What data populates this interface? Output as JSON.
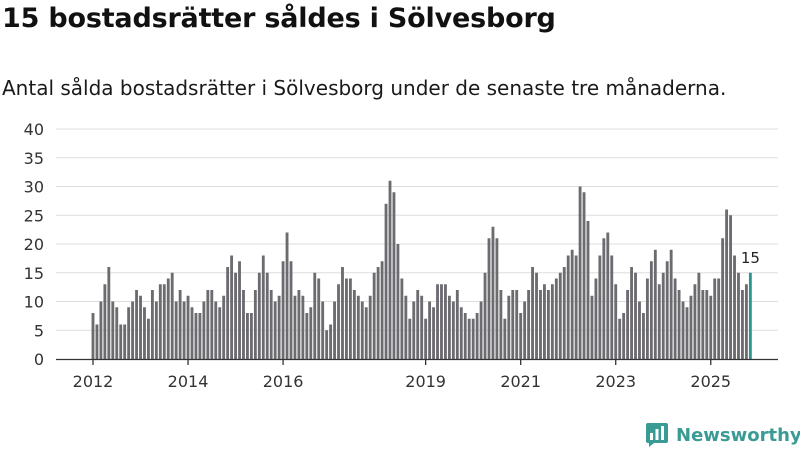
{
  "title": "15 bostadsrätter såldes i Sölvesborg",
  "subtitle": "Antal sålda bostadsrätter i Sölvesborg under de senaste tre månaderna.",
  "brand": {
    "name": "Newsworthy",
    "color": "#3a9a94"
  },
  "colors": {
    "bar": "#6c6b70",
    "highlight": "#2a968e",
    "grid": "#dddddd",
    "axis": "#333333"
  },
  "chart_data": {
    "type": "bar",
    "title": "15 bostadsrätter såldes i Sölvesborg",
    "xlabel": "",
    "ylabel": "",
    "ylim": [
      0,
      40
    ],
    "yticks": [
      "0",
      "5",
      "10",
      "15",
      "20",
      "25",
      "30",
      "35",
      "40"
    ],
    "start": "2012-01",
    "xticks": [
      {
        "label": "2012",
        "index": 0
      },
      {
        "label": "2014",
        "index": 24
      },
      {
        "label": "2016",
        "index": 48
      },
      {
        "label": "2019",
        "index": 84
      },
      {
        "label": "2021",
        "index": 108
      },
      {
        "label": "2023",
        "index": 132
      },
      {
        "label": "2025",
        "index": 156
      }
    ],
    "series": [
      {
        "name": "Sålda bostadsrätter",
        "values": [
          8,
          6,
          10,
          13,
          16,
          10,
          9,
          6,
          6,
          9,
          10,
          12,
          11,
          9,
          7,
          12,
          10,
          13,
          13,
          14,
          15,
          10,
          12,
          10,
          11,
          9,
          8,
          8,
          10,
          12,
          12,
          10,
          9,
          11,
          16,
          18,
          15,
          17,
          12,
          8,
          8,
          12,
          15,
          18,
          15,
          12,
          10,
          11,
          17,
          22,
          17,
          11,
          12,
          11,
          8,
          9,
          15,
          14,
          10,
          5,
          6,
          10,
          13,
          16,
          14,
          14,
          12,
          11,
          10,
          9,
          11,
          15,
          16,
          17,
          27,
          31,
          29,
          20,
          14,
          11,
          7,
          10,
          12,
          11,
          7,
          10,
          9,
          13,
          13,
          13,
          11,
          10,
          12,
          9,
          8,
          7,
          7,
          8,
          10,
          15,
          21,
          23,
          21,
          12,
          7,
          11,
          12,
          12,
          8,
          10,
          12,
          16,
          15,
          12,
          13,
          12,
          13,
          14,
          15,
          16,
          18,
          19,
          18,
          30,
          29,
          24,
          11,
          14,
          18,
          21,
          22,
          18,
          13,
          7,
          8,
          12,
          16,
          15,
          10,
          8,
          14,
          17,
          19,
          13,
          15,
          17,
          19,
          14,
          12,
          10,
          9,
          11,
          13,
          15,
          12,
          12,
          11,
          14,
          14,
          21,
          26,
          25,
          18,
          15,
          12,
          13,
          15
        ]
      }
    ],
    "highlight_last": true,
    "annotation": {
      "label": "15",
      "index": "last"
    }
  }
}
